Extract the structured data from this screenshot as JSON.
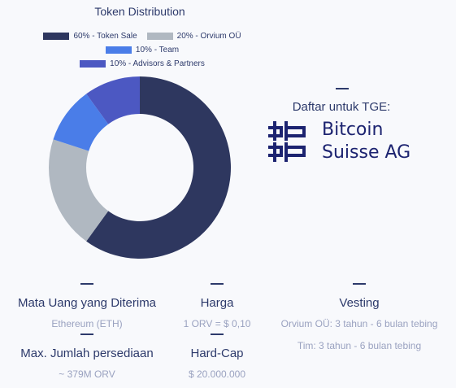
{
  "chart_data": {
    "type": "pie",
    "title": "Token Distribution",
    "donut": true,
    "slices": [
      {
        "label": "60% - Token Sale",
        "value": 60,
        "color": "#2e375f"
      },
      {
        "label": "20% - Orvium OÜ",
        "value": 20,
        "color": "#b0b8c1"
      },
      {
        "label": "10% - Team",
        "value": 10,
        "color": "#4a7de8"
      },
      {
        "label": "10% - Advisors & Partners",
        "value": 10,
        "color": "#4c58c2"
      }
    ],
    "legend_placement": "top"
  },
  "tge": {
    "label": "Daftar untuk TGE:",
    "logo_line1": "Bitcoin",
    "logo_line2": "Suisse AG"
  },
  "info": {
    "currency": {
      "label": "Mata Uang yang Diterima",
      "value": "Ethereum (ETH)"
    },
    "price": {
      "label": "Harga",
      "value": "1 ORV = $ 0,10"
    },
    "vesting": {
      "label": "Vesting",
      "value1": "Orvium OÜ: 3 tahun - 6 bulan tebing",
      "value2": "Tim: 3 tahun - 6 bulan tebing"
    },
    "supply": {
      "label": "Max. Jumlah persediaan",
      "value": "~ 379M ORV"
    },
    "hardcap": {
      "label": "Hard-Cap",
      "value": "$ 20.000.000"
    }
  },
  "colors": {
    "text": "#2d3a6b",
    "muted": "#9aa2c0",
    "brand": "#1c2370"
  }
}
